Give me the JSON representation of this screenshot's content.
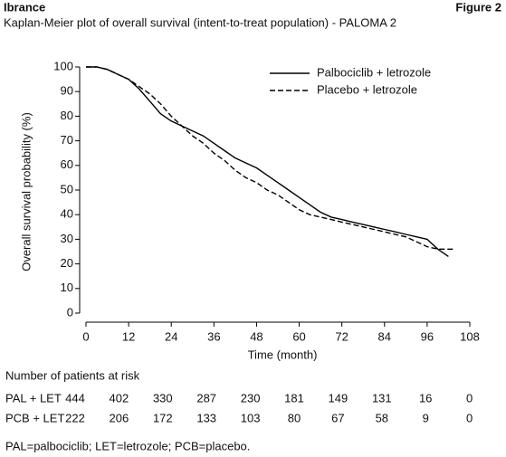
{
  "header": {
    "product": "Ibrance",
    "figure": "Figure 2"
  },
  "chart_data": {
    "type": "line",
    "title": "Kaplan-Meier plot of overall survival (intent-to-treat population) - PALOMA 2",
    "x_label": "Time (month)",
    "y_label": "Overall survival probability (%)",
    "x": [
      0,
      3,
      6,
      9,
      12,
      15,
      18,
      21,
      24,
      27,
      30,
      33,
      36,
      39,
      42,
      45,
      48,
      51,
      54,
      57,
      60,
      63,
      66,
      69,
      72,
      75,
      78,
      81,
      84,
      87,
      90,
      93,
      96,
      99,
      102,
      104
    ],
    "series": [
      {
        "name": "Palbociclib + letrozole",
        "color": "#000000",
        "dash": "solid",
        "values": [
          100,
          100,
          99,
          97,
          95,
          91,
          86,
          81,
          78,
          76,
          74,
          72,
          69,
          66,
          63,
          61,
          59,
          56,
          53,
          50,
          47,
          44,
          41,
          39,
          38,
          37,
          36,
          35,
          34,
          33,
          32,
          31,
          30,
          26,
          23,
          null
        ]
      },
      {
        "name": "Placebo + letrozole",
        "color": "#000000",
        "dash": "dashed",
        "values": [
          100,
          100,
          99,
          97,
          95,
          92,
          89,
          85,
          80,
          76,
          72,
          69,
          65,
          62,
          58,
          55,
          53,
          50,
          48,
          45,
          42,
          40,
          39,
          38,
          37,
          36,
          35,
          34,
          33,
          32,
          31,
          29,
          27,
          26,
          26,
          26
        ]
      }
    ],
    "xlim": [
      0,
      108
    ],
    "xticks": [
      0,
      12,
      24,
      36,
      48,
      60,
      72,
      84,
      96,
      108
    ],
    "ylim": [
      0,
      100
    ],
    "yticks": [
      0,
      10,
      20,
      30,
      40,
      50,
      60,
      70,
      80,
      90,
      100
    ],
    "legend": "top-right"
  },
  "risk_table": {
    "title": "Number of patients at risk",
    "rows": [
      {
        "label": "PAL + LET",
        "values": [
          444,
          402,
          330,
          287,
          230,
          181,
          149,
          131,
          16,
          0
        ]
      },
      {
        "label": "PCB + LET",
        "values": [
          222,
          206,
          172,
          133,
          103,
          80,
          67,
          58,
          9,
          0
        ]
      }
    ]
  },
  "footnote": "PAL=palbociclib; LET=letrozole; PCB=placebo."
}
